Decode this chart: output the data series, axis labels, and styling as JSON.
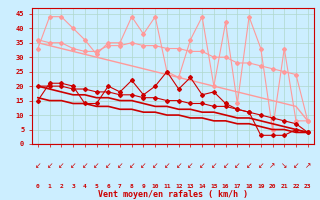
{
  "x": [
    0,
    1,
    2,
    3,
    4,
    5,
    6,
    7,
    8,
    9,
    10,
    11,
    12,
    13,
    14,
    15,
    16,
    17,
    18,
    19,
    20,
    21,
    22,
    23
  ],
  "series": [
    {
      "name": "rafales_light1",
      "color": "#ff9999",
      "linewidth": 0.8,
      "markersize": 2.0,
      "y": [
        33,
        44,
        44,
        40,
        36,
        31,
        35,
        35,
        44,
        38,
        44,
        25,
        23,
        36,
        44,
        20,
        42,
        14,
        44,
        33,
        5,
        33,
        8,
        8
      ]
    },
    {
      "name": "rafales_light2",
      "color": "#ff9999",
      "linewidth": 0.8,
      "markersize": 2.0,
      "y": [
        36,
        35,
        35,
        33,
        32,
        32,
        34,
        34,
        35,
        34,
        34,
        33,
        33,
        32,
        32,
        30,
        30,
        28,
        28,
        27,
        26,
        25,
        24,
        8
      ]
    },
    {
      "name": "trend_light",
      "color": "#ff9999",
      "linewidth": 1.0,
      "markersize": 0,
      "y": [
        35,
        34,
        33,
        32,
        31,
        30,
        29,
        28,
        27,
        26,
        25,
        24,
        23,
        22,
        21,
        20,
        19,
        18,
        17,
        16,
        15,
        14,
        13,
        8
      ]
    },
    {
      "name": "moyen_dark1",
      "color": "#cc0000",
      "linewidth": 0.8,
      "markersize": 2.0,
      "y": [
        15,
        21,
        21,
        20,
        14,
        14,
        20,
        18,
        22,
        17,
        20,
        25,
        19,
        23,
        17,
        18,
        14,
        12,
        11,
        3,
        3,
        3,
        5,
        4
      ]
    },
    {
      "name": "moyen_dark2",
      "color": "#cc0000",
      "linewidth": 0.8,
      "markersize": 2.0,
      "y": [
        20,
        20,
        20,
        19,
        19,
        18,
        18,
        17,
        17,
        16,
        16,
        15,
        15,
        14,
        14,
        13,
        13,
        12,
        11,
        10,
        9,
        8,
        7,
        4
      ]
    },
    {
      "name": "trend_dark1",
      "color": "#cc0000",
      "linewidth": 1.2,
      "markersize": 0,
      "y": [
        20,
        19,
        18,
        17,
        17,
        16,
        16,
        15,
        15,
        14,
        13,
        13,
        12,
        12,
        11,
        11,
        10,
        9,
        9,
        8,
        7,
        6,
        5,
        4
      ]
    },
    {
      "name": "trend_dark2",
      "color": "#cc0000",
      "linewidth": 1.2,
      "markersize": 0,
      "y": [
        16,
        15,
        15,
        14,
        14,
        13,
        13,
        12,
        12,
        11,
        11,
        10,
        10,
        9,
        9,
        8,
        8,
        7,
        7,
        6,
        5,
        5,
        4,
        4
      ]
    }
  ],
  "arrow_chars": [
    "↙",
    "↙",
    "↙",
    "↙",
    "↙",
    "↙",
    "↙",
    "↙",
    "↙",
    "↙",
    "↙",
    "↙",
    "↙",
    "↙",
    "↙",
    "↙",
    "↙",
    "↙",
    "↙",
    "↙",
    "↗",
    "↘",
    "↙",
    "↗"
  ],
  "xlabel": "Vent moyen/en rafales ( km/h )",
  "xtick_labels": [
    "0",
    "1",
    "2",
    "3",
    "4",
    "5",
    "6",
    "7",
    "8",
    "9",
    "10",
    "11",
    "12",
    "13",
    "14",
    "15",
    "16",
    "17",
    "18",
    "19",
    "20",
    "21",
    "22",
    "23"
  ],
  "ytick_labels": [
    "0",
    "5",
    "10",
    "15",
    "20",
    "25",
    "30",
    "35",
    "40",
    "45"
  ],
  "ylim": [
    0,
    47
  ],
  "xlim": [
    -0.5,
    23.5
  ],
  "background_color": "#cceeff",
  "grid_color": "#b0d8cc",
  "axis_color": "#cc0000",
  "label_color": "#cc0000"
}
